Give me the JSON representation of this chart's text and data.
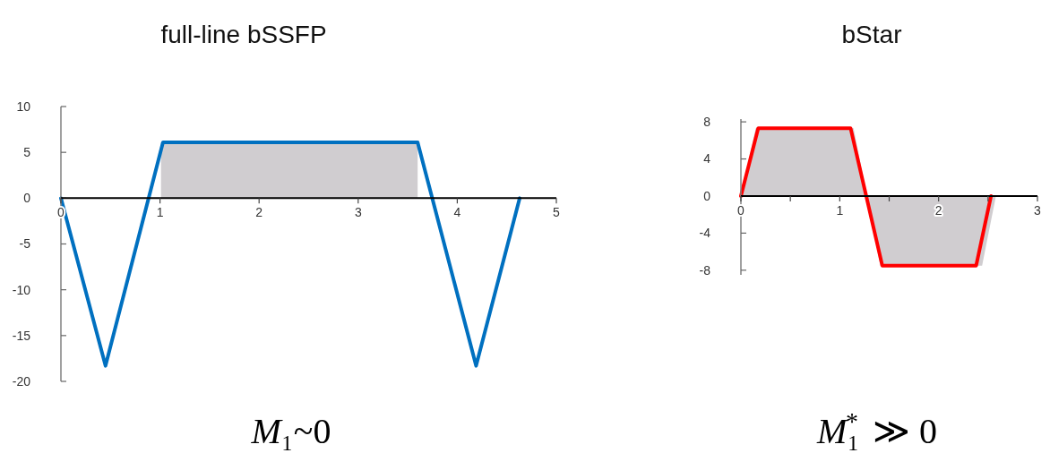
{
  "chart_data": [
    {
      "type": "line",
      "title": "full-line bSSFP",
      "xlim": [
        0,
        5
      ],
      "xticks": [
        0,
        1,
        2,
        3,
        4,
        5
      ],
      "ylim": [
        -20,
        10
      ],
      "yticks": [
        -20,
        -15,
        -10,
        -5,
        0,
        5,
        10
      ],
      "series": [
        {
          "type": "area",
          "color": "#d0cdd0",
          "x": [
            1.01,
            3.6
          ],
          "values": [
            6.1,
            6.1
          ]
        },
        {
          "color": "#0070c0",
          "x": [
            0,
            0.45,
            1.03,
            3.6,
            4.19,
            4.63
          ],
          "values": [
            0,
            -18.3,
            6.1,
            6.1,
            -18.3,
            0
          ]
        }
      ],
      "annotations": [
        "M₁~0"
      ]
    },
    {
      "type": "line",
      "title": "bStar",
      "xlim": [
        0,
        3
      ],
      "xticks": [
        0,
        {
          "value": 0.5,
          "label": null
        },
        1,
        {
          "value": 1.5,
          "label": null
        },
        2,
        {
          "value": 2.5,
          "label": null
        },
        3
      ],
      "ylim": [
        -8.5,
        8.3
      ],
      "yticks": [
        -8,
        -4,
        0,
        4,
        8
      ],
      "series": [
        {
          "type": "area",
          "color": "#d0cdd0",
          "x": [
            0,
            0.15,
            1.14,
            1.41,
            2.44,
            2.58
          ],
          "values": [
            0,
            7.3,
            7.3,
            -7.5,
            -7.5,
            0
          ]
        },
        {
          "color": "#ff0000",
          "x": [
            0,
            0.175,
            1.11,
            1.43,
            2.38,
            2.53
          ],
          "values": [
            0,
            7.3,
            7.3,
            -7.5,
            -7.5,
            0
          ]
        }
      ],
      "annotations": [
        "M₁$^{*}$ ≫ 0"
      ]
    }
  ]
}
